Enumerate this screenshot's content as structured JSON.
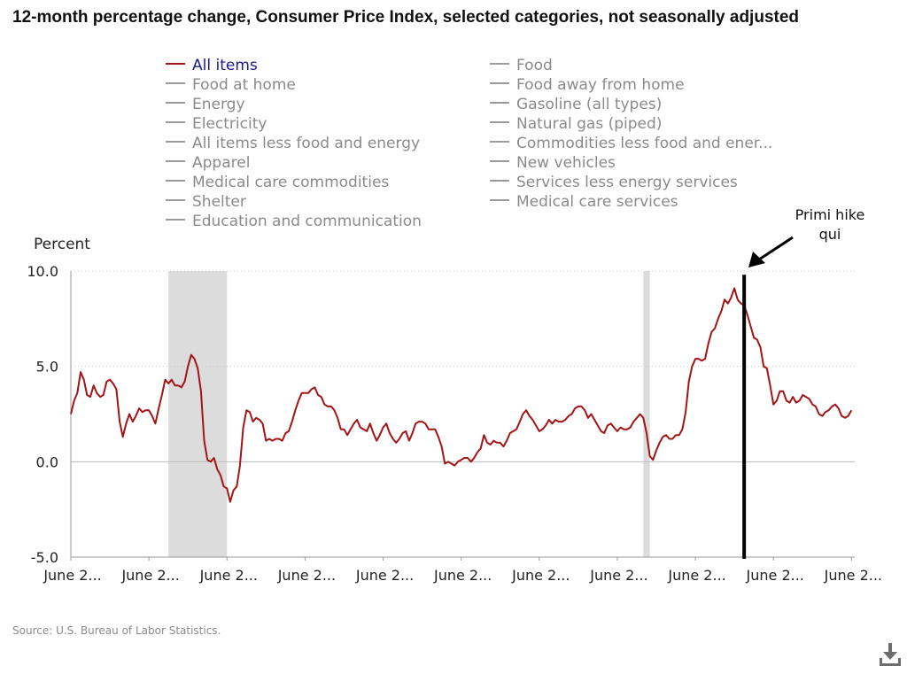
{
  "title": "12-month percentage change, Consumer Price Index, selected categories, not seasonally adjusted",
  "legend": {
    "left": [
      {
        "label": "All items",
        "active": true
      },
      {
        "label": "Food at home",
        "active": false
      },
      {
        "label": "Energy",
        "active": false
      },
      {
        "label": "Electricity",
        "active": false
      },
      {
        "label": "All items less food and energy",
        "active": false
      },
      {
        "label": "Apparel",
        "active": false
      },
      {
        "label": "Medical care commodities",
        "active": false
      },
      {
        "label": "Shelter",
        "active": false
      },
      {
        "label": "Education and communication",
        "active": false
      }
    ],
    "right": [
      {
        "label": "Food",
        "active": false
      },
      {
        "label": "Food away from home",
        "active": false
      },
      {
        "label": "Gasoline (all types)",
        "active": false
      },
      {
        "label": "Natural gas (piped)",
        "active": false
      },
      {
        "label": "Commodities less food and ener...",
        "active": false
      },
      {
        "label": "New vehicles",
        "active": false
      },
      {
        "label": "Services less energy services",
        "active": false
      },
      {
        "label": "Medical care services",
        "active": false
      }
    ]
  },
  "source": "Source: U.S. Bureau of Labor Statistics.",
  "icons": {
    "download": "download-icon"
  },
  "colors": {
    "series": "#a31515",
    "recession": "#dcdcdc",
    "grid": "#c8c8c8",
    "axis": "#9a9a9a",
    "annotation": "#000000"
  },
  "chart_data": {
    "type": "line",
    "title": "12-month percentage change, Consumer Price Index, selected categories, not seasonally adjusted",
    "ylabel": "Percent",
    "xlabel": "",
    "ylim": [
      -5,
      10
    ],
    "yticks": [
      -5,
      0,
      5,
      10
    ],
    "ytick_labels": [
      "-5.0",
      "0.0",
      "5.0",
      "10.0"
    ],
    "x_start": 2005.417,
    "x_end": 2025.5,
    "xticks": [
      2005.417,
      2007.417,
      2009.417,
      2011.417,
      2013.417,
      2015.417,
      2017.417,
      2019.417,
      2021.417,
      2023.417,
      2025.417
    ],
    "xtick_labels": [
      "June 2...",
      "June 2...",
      "June 2...",
      "June 2...",
      "June 2...",
      "June 2...",
      "June 2...",
      "June 2...",
      "June 2...",
      "June 2...",
      "June 2..."
    ],
    "grid": "dotted horizontal",
    "recessions": [
      [
        2007.917,
        2009.417
      ],
      [
        2020.083,
        2020.25
      ]
    ],
    "annotation": {
      "text_lines": [
        "Primi hike",
        "qui"
      ],
      "x": 2022.667,
      "arrow_to": [
        2022.667,
        9.8
      ]
    },
    "series": [
      {
        "name": "All items",
        "points": [
          [
            2005.417,
            2.5
          ],
          [
            2005.5,
            3.2
          ],
          [
            2005.583,
            3.6
          ],
          [
            2005.667,
            4.7
          ],
          [
            2005.75,
            4.3
          ],
          [
            2005.833,
            3.5
          ],
          [
            2005.917,
            3.4
          ],
          [
            2006.0,
            4.0
          ],
          [
            2006.083,
            3.6
          ],
          [
            2006.167,
            3.4
          ],
          [
            2006.25,
            3.5
          ],
          [
            2006.333,
            4.2
          ],
          [
            2006.417,
            4.3
          ],
          [
            2006.5,
            4.1
          ],
          [
            2006.583,
            3.8
          ],
          [
            2006.667,
            2.1
          ],
          [
            2006.75,
            1.3
          ],
          [
            2006.833,
            2.0
          ],
          [
            2006.917,
            2.5
          ],
          [
            2007.0,
            2.1
          ],
          [
            2007.083,
            2.4
          ],
          [
            2007.167,
            2.8
          ],
          [
            2007.25,
            2.6
          ],
          [
            2007.333,
            2.7
          ],
          [
            2007.417,
            2.7
          ],
          [
            2007.5,
            2.4
          ],
          [
            2007.583,
            2.0
          ],
          [
            2007.667,
            2.8
          ],
          [
            2007.75,
            3.5
          ],
          [
            2007.833,
            4.3
          ],
          [
            2007.917,
            4.1
          ],
          [
            2008.0,
            4.3
          ],
          [
            2008.083,
            4.0
          ],
          [
            2008.167,
            4.0
          ],
          [
            2008.25,
            3.9
          ],
          [
            2008.333,
            4.2
          ],
          [
            2008.417,
            5.0
          ],
          [
            2008.5,
            5.6
          ],
          [
            2008.583,
            5.4
          ],
          [
            2008.667,
            4.9
          ],
          [
            2008.75,
            3.7
          ],
          [
            2008.833,
            1.1
          ],
          [
            2008.917,
            0.1
          ],
          [
            2009.0,
            0.0
          ],
          [
            2009.083,
            0.2
          ],
          [
            2009.167,
            -0.4
          ],
          [
            2009.25,
            -0.7
          ],
          [
            2009.333,
            -1.3
          ],
          [
            2009.417,
            -1.4
          ],
          [
            2009.5,
            -2.1
          ],
          [
            2009.583,
            -1.5
          ],
          [
            2009.667,
            -1.3
          ],
          [
            2009.75,
            -0.2
          ],
          [
            2009.833,
            1.8
          ],
          [
            2009.917,
            2.7
          ],
          [
            2010.0,
            2.6
          ],
          [
            2010.083,
            2.1
          ],
          [
            2010.167,
            2.3
          ],
          [
            2010.25,
            2.2
          ],
          [
            2010.333,
            2.0
          ],
          [
            2010.417,
            1.1
          ],
          [
            2010.5,
            1.2
          ],
          [
            2010.583,
            1.1
          ],
          [
            2010.667,
            1.2
          ],
          [
            2010.75,
            1.2
          ],
          [
            2010.833,
            1.1
          ],
          [
            2010.917,
            1.5
          ],
          [
            2011.0,
            1.6
          ],
          [
            2011.083,
            2.1
          ],
          [
            2011.167,
            2.7
          ],
          [
            2011.25,
            3.2
          ],
          [
            2011.333,
            3.6
          ],
          [
            2011.417,
            3.6
          ],
          [
            2011.5,
            3.6
          ],
          [
            2011.583,
            3.8
          ],
          [
            2011.667,
            3.9
          ],
          [
            2011.75,
            3.5
          ],
          [
            2011.833,
            3.4
          ],
          [
            2011.917,
            3.0
          ],
          [
            2012.0,
            2.9
          ],
          [
            2012.083,
            2.9
          ],
          [
            2012.167,
            2.7
          ],
          [
            2012.25,
            2.3
          ],
          [
            2012.333,
            1.7
          ],
          [
            2012.417,
            1.7
          ],
          [
            2012.5,
            1.4
          ],
          [
            2012.583,
            1.7
          ],
          [
            2012.667,
            2.0
          ],
          [
            2012.75,
            2.2
          ],
          [
            2012.833,
            1.8
          ],
          [
            2012.917,
            1.7
          ],
          [
            2013.0,
            1.6
          ],
          [
            2013.083,
            2.0
          ],
          [
            2013.167,
            1.5
          ],
          [
            2013.25,
            1.1
          ],
          [
            2013.333,
            1.4
          ],
          [
            2013.417,
            1.8
          ],
          [
            2013.5,
            2.0
          ],
          [
            2013.583,
            1.5
          ],
          [
            2013.667,
            1.2
          ],
          [
            2013.75,
            1.0
          ],
          [
            2013.833,
            1.2
          ],
          [
            2013.917,
            1.5
          ],
          [
            2014.0,
            1.6
          ],
          [
            2014.083,
            1.1
          ],
          [
            2014.167,
            1.5
          ],
          [
            2014.25,
            2.0
          ],
          [
            2014.333,
            2.1
          ],
          [
            2014.417,
            2.1
          ],
          [
            2014.5,
            2.0
          ],
          [
            2014.583,
            1.7
          ],
          [
            2014.667,
            1.7
          ],
          [
            2014.75,
            1.7
          ],
          [
            2014.833,
            1.3
          ],
          [
            2014.917,
            0.8
          ],
          [
            2015.0,
            -0.1
          ],
          [
            2015.083,
            0.0
          ],
          [
            2015.167,
            -0.1
          ],
          [
            2015.25,
            -0.2
          ],
          [
            2015.333,
            0.0
          ],
          [
            2015.417,
            0.1
          ],
          [
            2015.5,
            0.2
          ],
          [
            2015.583,
            0.2
          ],
          [
            2015.667,
            0.0
          ],
          [
            2015.75,
            0.2
          ],
          [
            2015.833,
            0.5
          ],
          [
            2015.917,
            0.7
          ],
          [
            2016.0,
            1.4
          ],
          [
            2016.083,
            1.0
          ],
          [
            2016.167,
            0.9
          ],
          [
            2016.25,
            1.1
          ],
          [
            2016.333,
            1.0
          ],
          [
            2016.417,
            1.0
          ],
          [
            2016.5,
            0.8
          ],
          [
            2016.583,
            1.1
          ],
          [
            2016.667,
            1.5
          ],
          [
            2016.75,
            1.6
          ],
          [
            2016.833,
            1.7
          ],
          [
            2016.917,
            2.1
          ],
          [
            2017.0,
            2.5
          ],
          [
            2017.083,
            2.7
          ],
          [
            2017.167,
            2.4
          ],
          [
            2017.25,
            2.2
          ],
          [
            2017.333,
            1.9
          ],
          [
            2017.417,
            1.6
          ],
          [
            2017.5,
            1.7
          ],
          [
            2017.583,
            1.9
          ],
          [
            2017.667,
            2.2
          ],
          [
            2017.75,
            2.0
          ],
          [
            2017.833,
            2.2
          ],
          [
            2017.917,
            2.1
          ],
          [
            2018.0,
            2.1
          ],
          [
            2018.083,
            2.2
          ],
          [
            2018.167,
            2.4
          ],
          [
            2018.25,
            2.5
          ],
          [
            2018.333,
            2.8
          ],
          [
            2018.417,
            2.9
          ],
          [
            2018.5,
            2.9
          ],
          [
            2018.583,
            2.7
          ],
          [
            2018.667,
            2.3
          ],
          [
            2018.75,
            2.5
          ],
          [
            2018.833,
            2.2
          ],
          [
            2018.917,
            1.9
          ],
          [
            2019.0,
            1.6
          ],
          [
            2019.083,
            1.5
          ],
          [
            2019.167,
            1.9
          ],
          [
            2019.25,
            2.0
          ],
          [
            2019.333,
            1.8
          ],
          [
            2019.417,
            1.6
          ],
          [
            2019.5,
            1.8
          ],
          [
            2019.583,
            1.7
          ],
          [
            2019.667,
            1.7
          ],
          [
            2019.75,
            1.8
          ],
          [
            2019.833,
            2.1
          ],
          [
            2019.917,
            2.3
          ],
          [
            2020.0,
            2.5
          ],
          [
            2020.083,
            2.3
          ],
          [
            2020.167,
            1.5
          ],
          [
            2020.25,
            0.3
          ],
          [
            2020.333,
            0.1
          ],
          [
            2020.417,
            0.6
          ],
          [
            2020.5,
            1.0
          ],
          [
            2020.583,
            1.3
          ],
          [
            2020.667,
            1.4
          ],
          [
            2020.75,
            1.2
          ],
          [
            2020.833,
            1.2
          ],
          [
            2020.917,
            1.4
          ],
          [
            2021.0,
            1.4
          ],
          [
            2021.083,
            1.7
          ],
          [
            2021.167,
            2.6
          ],
          [
            2021.25,
            4.2
          ],
          [
            2021.333,
            5.0
          ],
          [
            2021.417,
            5.4
          ],
          [
            2021.5,
            5.4
          ],
          [
            2021.583,
            5.3
          ],
          [
            2021.667,
            5.4
          ],
          [
            2021.75,
            6.2
          ],
          [
            2021.833,
            6.8
          ],
          [
            2021.917,
            7.0
          ],
          [
            2022.0,
            7.5
          ],
          [
            2022.083,
            7.9
          ],
          [
            2022.167,
            8.5
          ],
          [
            2022.25,
            8.3
          ],
          [
            2022.333,
            8.6
          ],
          [
            2022.417,
            9.1
          ],
          [
            2022.5,
            8.5
          ],
          [
            2022.583,
            8.3
          ],
          [
            2022.667,
            8.2
          ],
          [
            2022.75,
            7.7
          ],
          [
            2022.833,
            7.1
          ],
          [
            2022.917,
            6.5
          ],
          [
            2023.0,
            6.4
          ],
          [
            2023.083,
            6.0
          ],
          [
            2023.167,
            5.0
          ],
          [
            2023.25,
            4.9
          ],
          [
            2023.333,
            4.0
          ],
          [
            2023.417,
            3.0
          ],
          [
            2023.5,
            3.2
          ],
          [
            2023.583,
            3.7
          ],
          [
            2023.667,
            3.7
          ],
          [
            2023.75,
            3.2
          ],
          [
            2023.833,
            3.1
          ],
          [
            2023.917,
            3.4
          ],
          [
            2024.0,
            3.1
          ],
          [
            2024.083,
            3.2
          ],
          [
            2024.167,
            3.5
          ],
          [
            2024.25,
            3.4
          ],
          [
            2024.333,
            3.3
          ],
          [
            2024.417,
            3.0
          ],
          [
            2024.5,
            2.9
          ],
          [
            2024.583,
            2.5
          ],
          [
            2024.667,
            2.4
          ],
          [
            2024.75,
            2.6
          ],
          [
            2024.833,
            2.7
          ],
          [
            2024.917,
            2.9
          ],
          [
            2025.0,
            3.0
          ],
          [
            2025.083,
            2.8
          ],
          [
            2025.167,
            2.4
          ],
          [
            2025.25,
            2.3
          ],
          [
            2025.333,
            2.4
          ],
          [
            2025.417,
            2.7
          ]
        ]
      }
    ]
  }
}
